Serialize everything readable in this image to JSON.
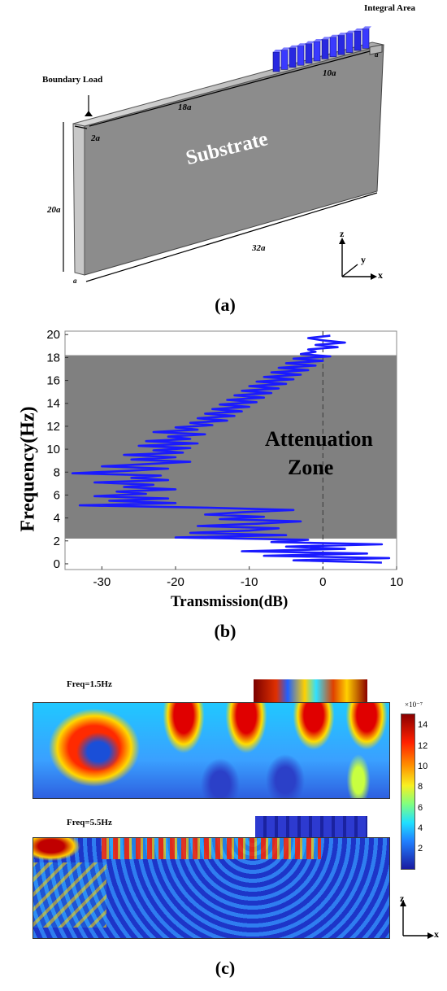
{
  "panel_a": {
    "label": "(a)",
    "integral_area": "Integral Area",
    "boundary_load": "Boundary Load",
    "substrate": "Substrate",
    "dims": {
      "d18": "18a",
      "d10": "10a",
      "d2": "2a",
      "d20": "20a",
      "d32": "32a",
      "da_top": "a",
      "da_bottom": "a"
    },
    "axes": {
      "z": "z",
      "y": "y",
      "x": "x"
    }
  },
  "panel_b": {
    "label": "(b)",
    "zone_text_1": "Attenuation",
    "zone_text_2": "Zone",
    "chart_data": {
      "type": "line",
      "xlabel": "Transmission(dB)",
      "ylabel": "Frequency(Hz)",
      "xlim": [
        -35,
        10
      ],
      "ylim": [
        -0.5,
        20.3
      ],
      "xticks": [
        -30,
        -20,
        -10,
        0,
        10
      ],
      "yticks": [
        0,
        2,
        4,
        6,
        8,
        10,
        12,
        14,
        16,
        18,
        20
      ],
      "shaded_band_y": [
        2.2,
        18.2
      ],
      "reference_x": 0,
      "series": [
        {
          "color": "#1a1aff",
          "y": [
            0.1,
            0.3,
            0.5,
            0.7,
            0.9,
            1.1,
            1.3,
            1.5,
            1.7,
            1.9,
            2.1,
            2.3,
            2.5,
            2.7,
            2.9,
            3.1,
            3.3,
            3.5,
            3.7,
            3.9,
            4.1,
            4.3,
            4.5,
            4.7,
            4.9,
            5.1,
            5.3,
            5.5,
            5.7,
            5.9,
            6.1,
            6.3,
            6.5,
            6.7,
            6.9,
            7.1,
            7.3,
            7.5,
            7.7,
            7.9,
            8.1,
            8.3,
            8.5,
            8.7,
            8.9,
            9.1,
            9.3,
            9.5,
            9.7,
            9.9,
            10.1,
            10.3,
            10.5,
            10.7,
            10.9,
            11.1,
            11.3,
            11.5,
            11.7,
            11.9,
            12.1,
            12.3,
            12.5,
            12.7,
            12.9,
            13.1,
            13.3,
            13.5,
            13.7,
            13.9,
            14.1,
            14.3,
            14.5,
            14.7,
            14.9,
            15.1,
            15.3,
            15.5,
            15.7,
            15.9,
            16.1,
            16.3,
            16.5,
            16.7,
            16.9,
            17.1,
            17.3,
            17.5,
            17.7,
            17.9,
            18.1,
            18.3,
            18.5,
            18.7,
            18.9,
            19.1,
            19.3,
            19.5,
            19.7,
            19.9
          ],
          "x": [
            8,
            -4,
            9,
            -8,
            6,
            -11,
            3,
            -5,
            8,
            -7,
            -2,
            -20,
            -5,
            -18,
            -10,
            -6,
            -17,
            -9,
            -3,
            -14,
            -8,
            -16,
            -11,
            -4,
            -16,
            -33,
            -20,
            -29,
            -21,
            -31,
            -24,
            -28,
            -20,
            -27,
            -23,
            -31,
            -21,
            -26,
            -22,
            -34,
            -27,
            -21,
            -30,
            -24,
            -18,
            -26,
            -20,
            -27,
            -19,
            -23,
            -18,
            -25,
            -17,
            -24,
            -18,
            -21,
            -16,
            -23,
            -17,
            -20,
            -15,
            -18,
            -13,
            -17,
            -12,
            -16,
            -11,
            -15,
            -10,
            -14,
            -9,
            -13,
            -8,
            -12,
            -7,
            -11,
            -6,
            -10,
            -5,
            -9,
            -4,
            -8,
            -3,
            -7,
            -2,
            -6,
            -1,
            -5,
            0,
            -4,
            1,
            -3,
            -1,
            -2,
            2,
            -1,
            3,
            0,
            -2,
            1
          ]
        }
      ]
    }
  },
  "panel_c": {
    "label": "(c)",
    "freq1": "Freq=1.5Hz",
    "freq2": "Freq=5.5Hz",
    "colorbar_exp": "×10⁻⁷",
    "colorbar_ticks": [
      "14",
      "12",
      "10",
      "8",
      "6",
      "4",
      "2"
    ],
    "axes": {
      "z": "z",
      "x": "x"
    }
  }
}
